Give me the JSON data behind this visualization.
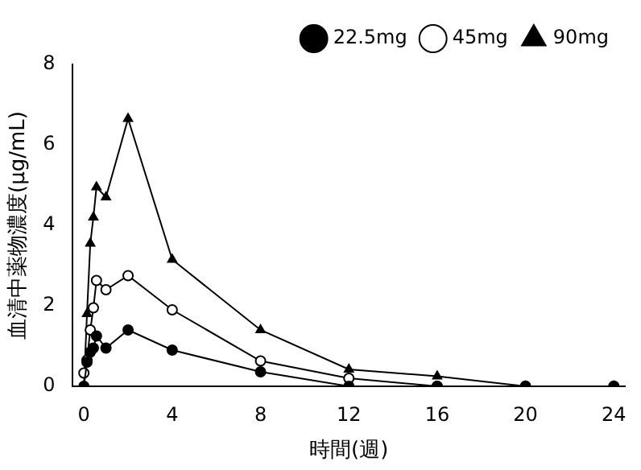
{
  "chart_data": {
    "type": "line",
    "xlabel": "時間(週)",
    "ylabel": "血清中薬物濃度(μg/mL)",
    "x": [
      0,
      0.14,
      0.29,
      0.43,
      0.57,
      1,
      2,
      4,
      8,
      12,
      16,
      20,
      24
    ],
    "series": [
      {
        "name": "22.5mg",
        "color": "#000000",
        "marker": "circle",
        "values": [
          0,
          0.6,
          0.85,
          0.95,
          1.25,
          0.95,
          1.4,
          0.9,
          0.36,
          0,
          0,
          0,
          0
        ]
      },
      {
        "name": "45mg",
        "color": "#000000",
        "marker": "circle",
        "values": [
          0.33,
          0.65,
          1.4,
          1.95,
          2.63,
          2.4,
          2.75,
          1.9,
          0.63,
          0.2,
          0,
          0,
          0
        ]
      },
      {
        "name": "90mg",
        "color": "#000000",
        "marker": "triangle",
        "values": [
          0,
          1.8,
          3.55,
          4.2,
          4.95,
          4.7,
          6.65,
          3.15,
          1.4,
          0.42,
          0.25,
          0,
          0
        ]
      }
    ],
    "xlim": [
      -0.5,
      24.5
    ],
    "xticks": [
      0,
      4,
      8,
      12,
      16,
      20,
      24
    ],
    "ylim": [
      0,
      8
    ],
    "yticks": [
      0,
      2,
      4,
      6,
      8
    ],
    "grid": false,
    "legend": "top right"
  }
}
